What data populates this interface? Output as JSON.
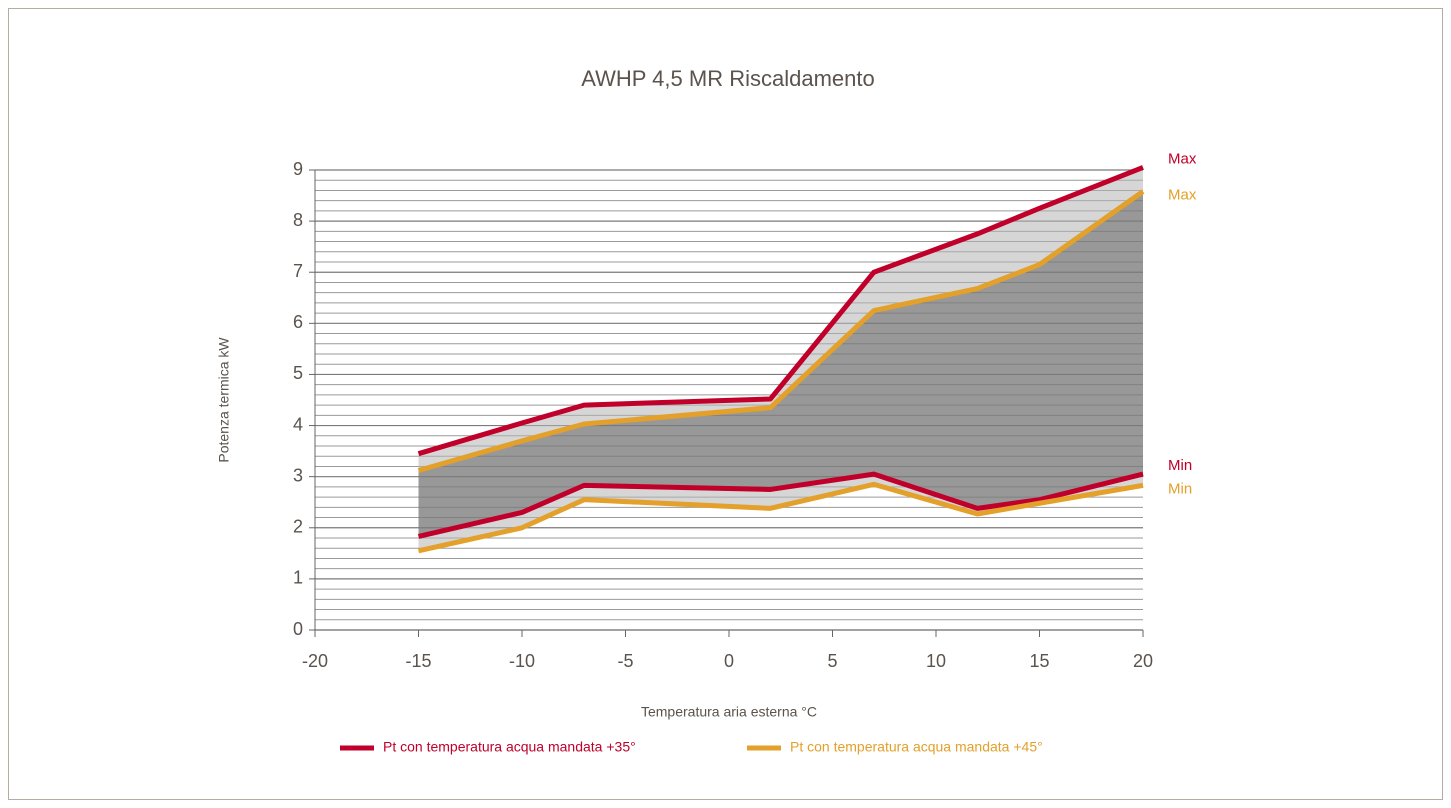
{
  "chart_data": {
    "type": "line",
    "title": "AWHP 4,5 MR Riscaldamento",
    "xlabel": "Temperatura aria esterna °C",
    "ylabel": "Potenza termica kW",
    "x": [
      -15,
      -10,
      -7,
      2,
      7,
      12,
      15,
      20
    ],
    "series": [
      {
        "name": "Pt con temperatura acqua mandata +35°",
        "color": "#c0002a",
        "max_label": "Max",
        "min_label": "Min",
        "max": [
          3.45,
          4.05,
          4.4,
          4.52,
          7.0,
          7.75,
          8.25,
          9.05
        ],
        "min": [
          1.83,
          2.3,
          2.83,
          2.75,
          3.05,
          2.38,
          2.55,
          3.05
        ]
      },
      {
        "name": "Pt con temperatura acqua mandata +45°",
        "color": "#e3a02a",
        "max_label": "Max",
        "min_label": "Min",
        "max": [
          3.12,
          3.7,
          4.03,
          4.35,
          6.25,
          6.68,
          7.15,
          8.58
        ],
        "min": [
          1.55,
          2.0,
          2.55,
          2.38,
          2.85,
          2.27,
          2.48,
          2.83
        ]
      }
    ],
    "xlim": [
      -20,
      20
    ],
    "xticks": [
      -20,
      -15,
      -10,
      -5,
      0,
      5,
      10,
      15,
      20
    ],
    "ylim": [
      0,
      9
    ],
    "yticks": [
      0,
      1,
      2,
      3,
      4,
      5,
      6,
      7,
      8,
      9
    ],
    "grid": true,
    "legend": "bottom"
  }
}
